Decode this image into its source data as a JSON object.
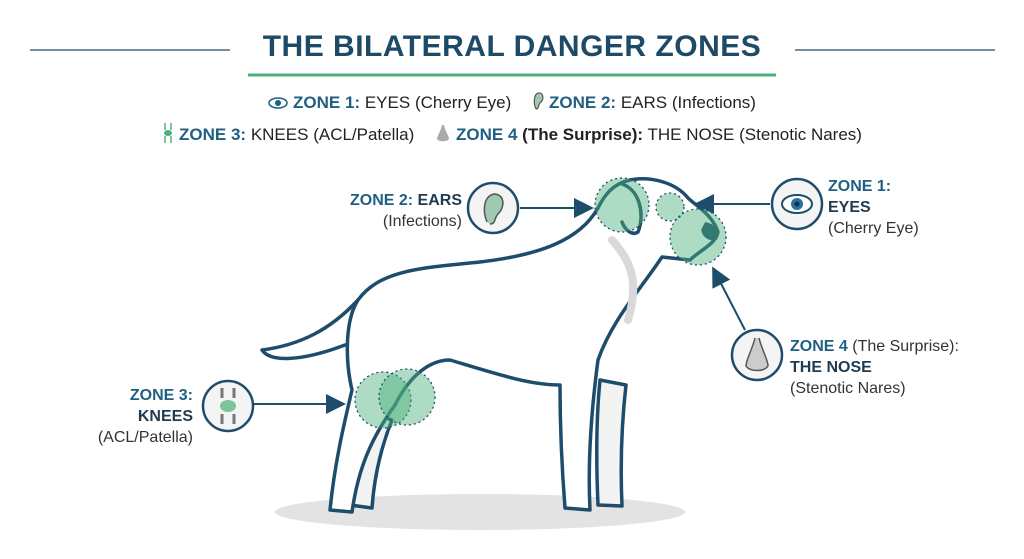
{
  "title": "THE BILATERAL DANGER ZONES",
  "colors": {
    "navy": "#1d4a66",
    "accent_blue": "#1f5f82",
    "green": "#4cb07a",
    "outline": "#1e4d6b"
  },
  "legend": [
    {
      "icon": "eye-icon",
      "zone": "ZONE 1:",
      "name": "EYES",
      "detail": "(Cherry Eye)"
    },
    {
      "icon": "ear-icon",
      "zone": "ZONE 2:",
      "name": "EARS",
      "detail": "(Infections)"
    },
    {
      "icon": "knee-joint-icon",
      "zone": "ZONE 3:",
      "name": "KNEES",
      "detail": "(ACL/Patella)"
    },
    {
      "icon": "nose-icon",
      "zone": "ZONE 4",
      "qualifier": "(The Surprise):",
      "name": "THE NOSE",
      "detail": "(Stenotic Nares)"
    }
  ],
  "callouts": {
    "zone1": {
      "zone": "ZONE 1:",
      "name": "EYES",
      "detail": "(Cherry Eye)"
    },
    "zone2": {
      "zone": "ZONE 2:",
      "name": "EARS",
      "detail": "(Infections)"
    },
    "zone3": {
      "zone": "ZONE 3:",
      "name": "KNEES",
      "detail": "(ACL/Patella)"
    },
    "zone4": {
      "zone": "ZONE 4",
      "qualifier": "(The Surprise):",
      "name": "THE NOSE",
      "detail": "(Stenotic Nares)"
    }
  }
}
